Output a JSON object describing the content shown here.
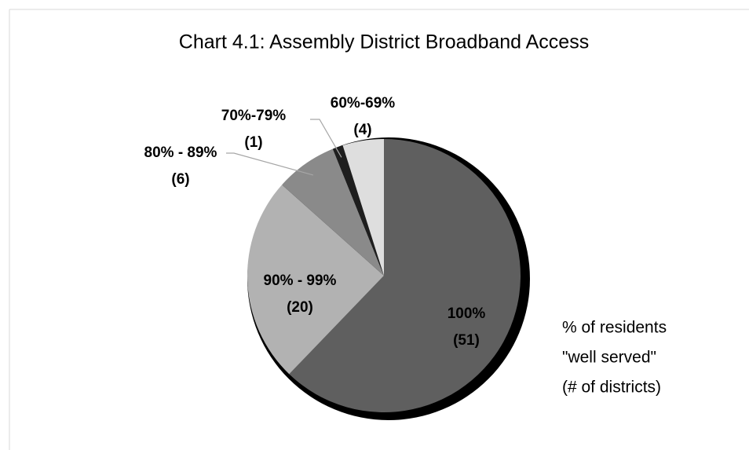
{
  "chart_data": {
    "type": "pie",
    "title": "Chart 4.1: Assembly District Broadband Access",
    "categories": [
      "100%",
      "90% - 99%",
      "80% - 89%",
      "70%-79%",
      "60%-69%"
    ],
    "values": [
      51,
      20,
      6,
      1,
      4
    ],
    "value_labels": [
      "(51)",
      "(20)",
      "(6)",
      "(1)",
      "(4)"
    ],
    "colors": [
      "#5f5f5f",
      "#b2b2b2",
      "#8a8a8a",
      "#1e1e1e",
      "#dedede"
    ],
    "annotation": [
      "% of residents",
      "\"well served\"",
      "(# of districts)"
    ]
  }
}
